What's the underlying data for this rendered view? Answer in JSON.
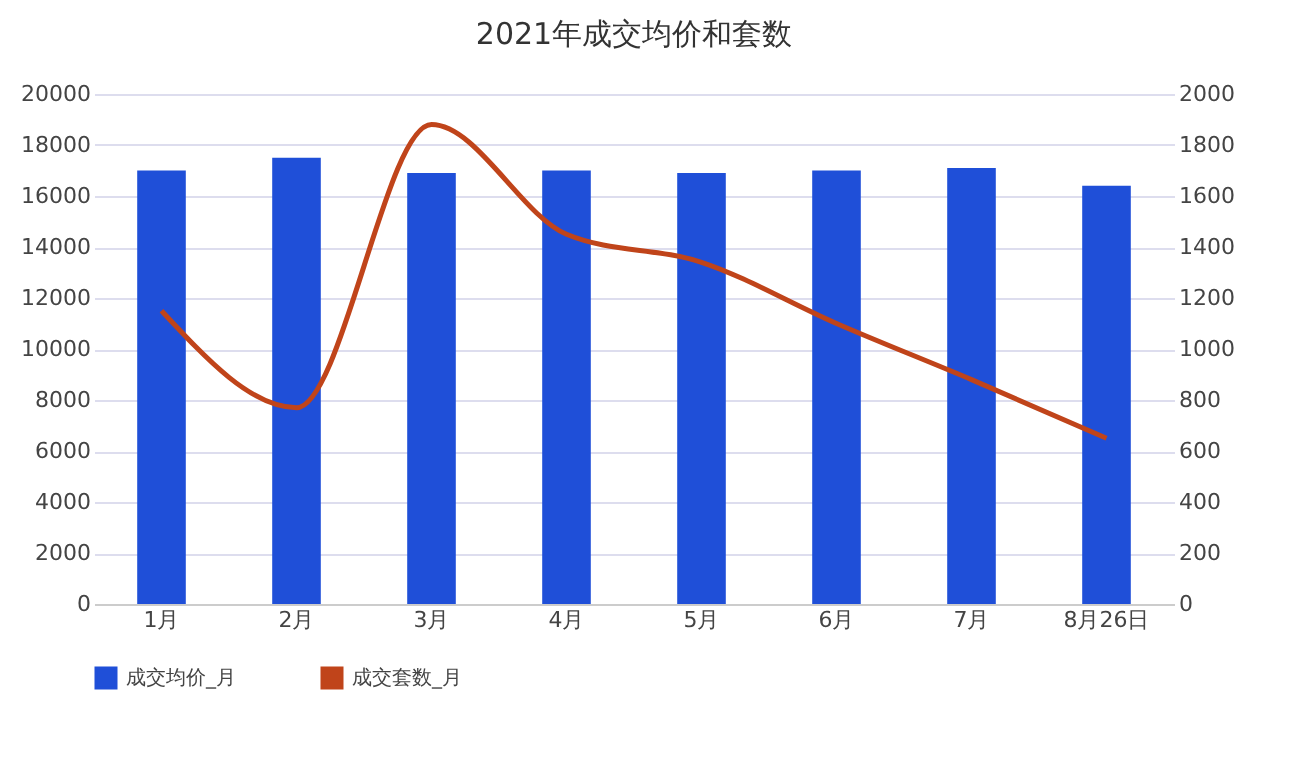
{
  "chart_data": {
    "type": "bar",
    "title": "2021年成交均价和套数",
    "categories": [
      "1月",
      "2月",
      "3月",
      "4月",
      "5月",
      "6月",
      "7月",
      "8月26日"
    ],
    "series": [
      {
        "name": "成交均价_月",
        "color": "#1f4fd8",
        "values": [
          17000,
          17500,
          16900,
          17000,
          16900,
          17000,
          17100,
          16400
        ]
      },
      {
        "name": "成交套数_月",
        "type": "line",
        "axis": "y2",
        "color": "#c0441a",
        "values": [
          1150,
          770,
          1880,
          1450,
          1340,
          1100,
          880,
          650
        ]
      }
    ],
    "ylim": [
      0,
      20000
    ],
    "yticks": [
      0,
      2000,
      4000,
      6000,
      8000,
      10000,
      12000,
      14000,
      16000,
      18000,
      20000
    ],
    "y2lim": [
      0,
      2000
    ],
    "y2ticks": [
      0,
      200,
      400,
      600,
      800,
      1000,
      1200,
      1400,
      1600,
      1800,
      2000
    ],
    "grid": "y",
    "legend": "bottom",
    "marker": "none",
    "line_style": "solid"
  }
}
